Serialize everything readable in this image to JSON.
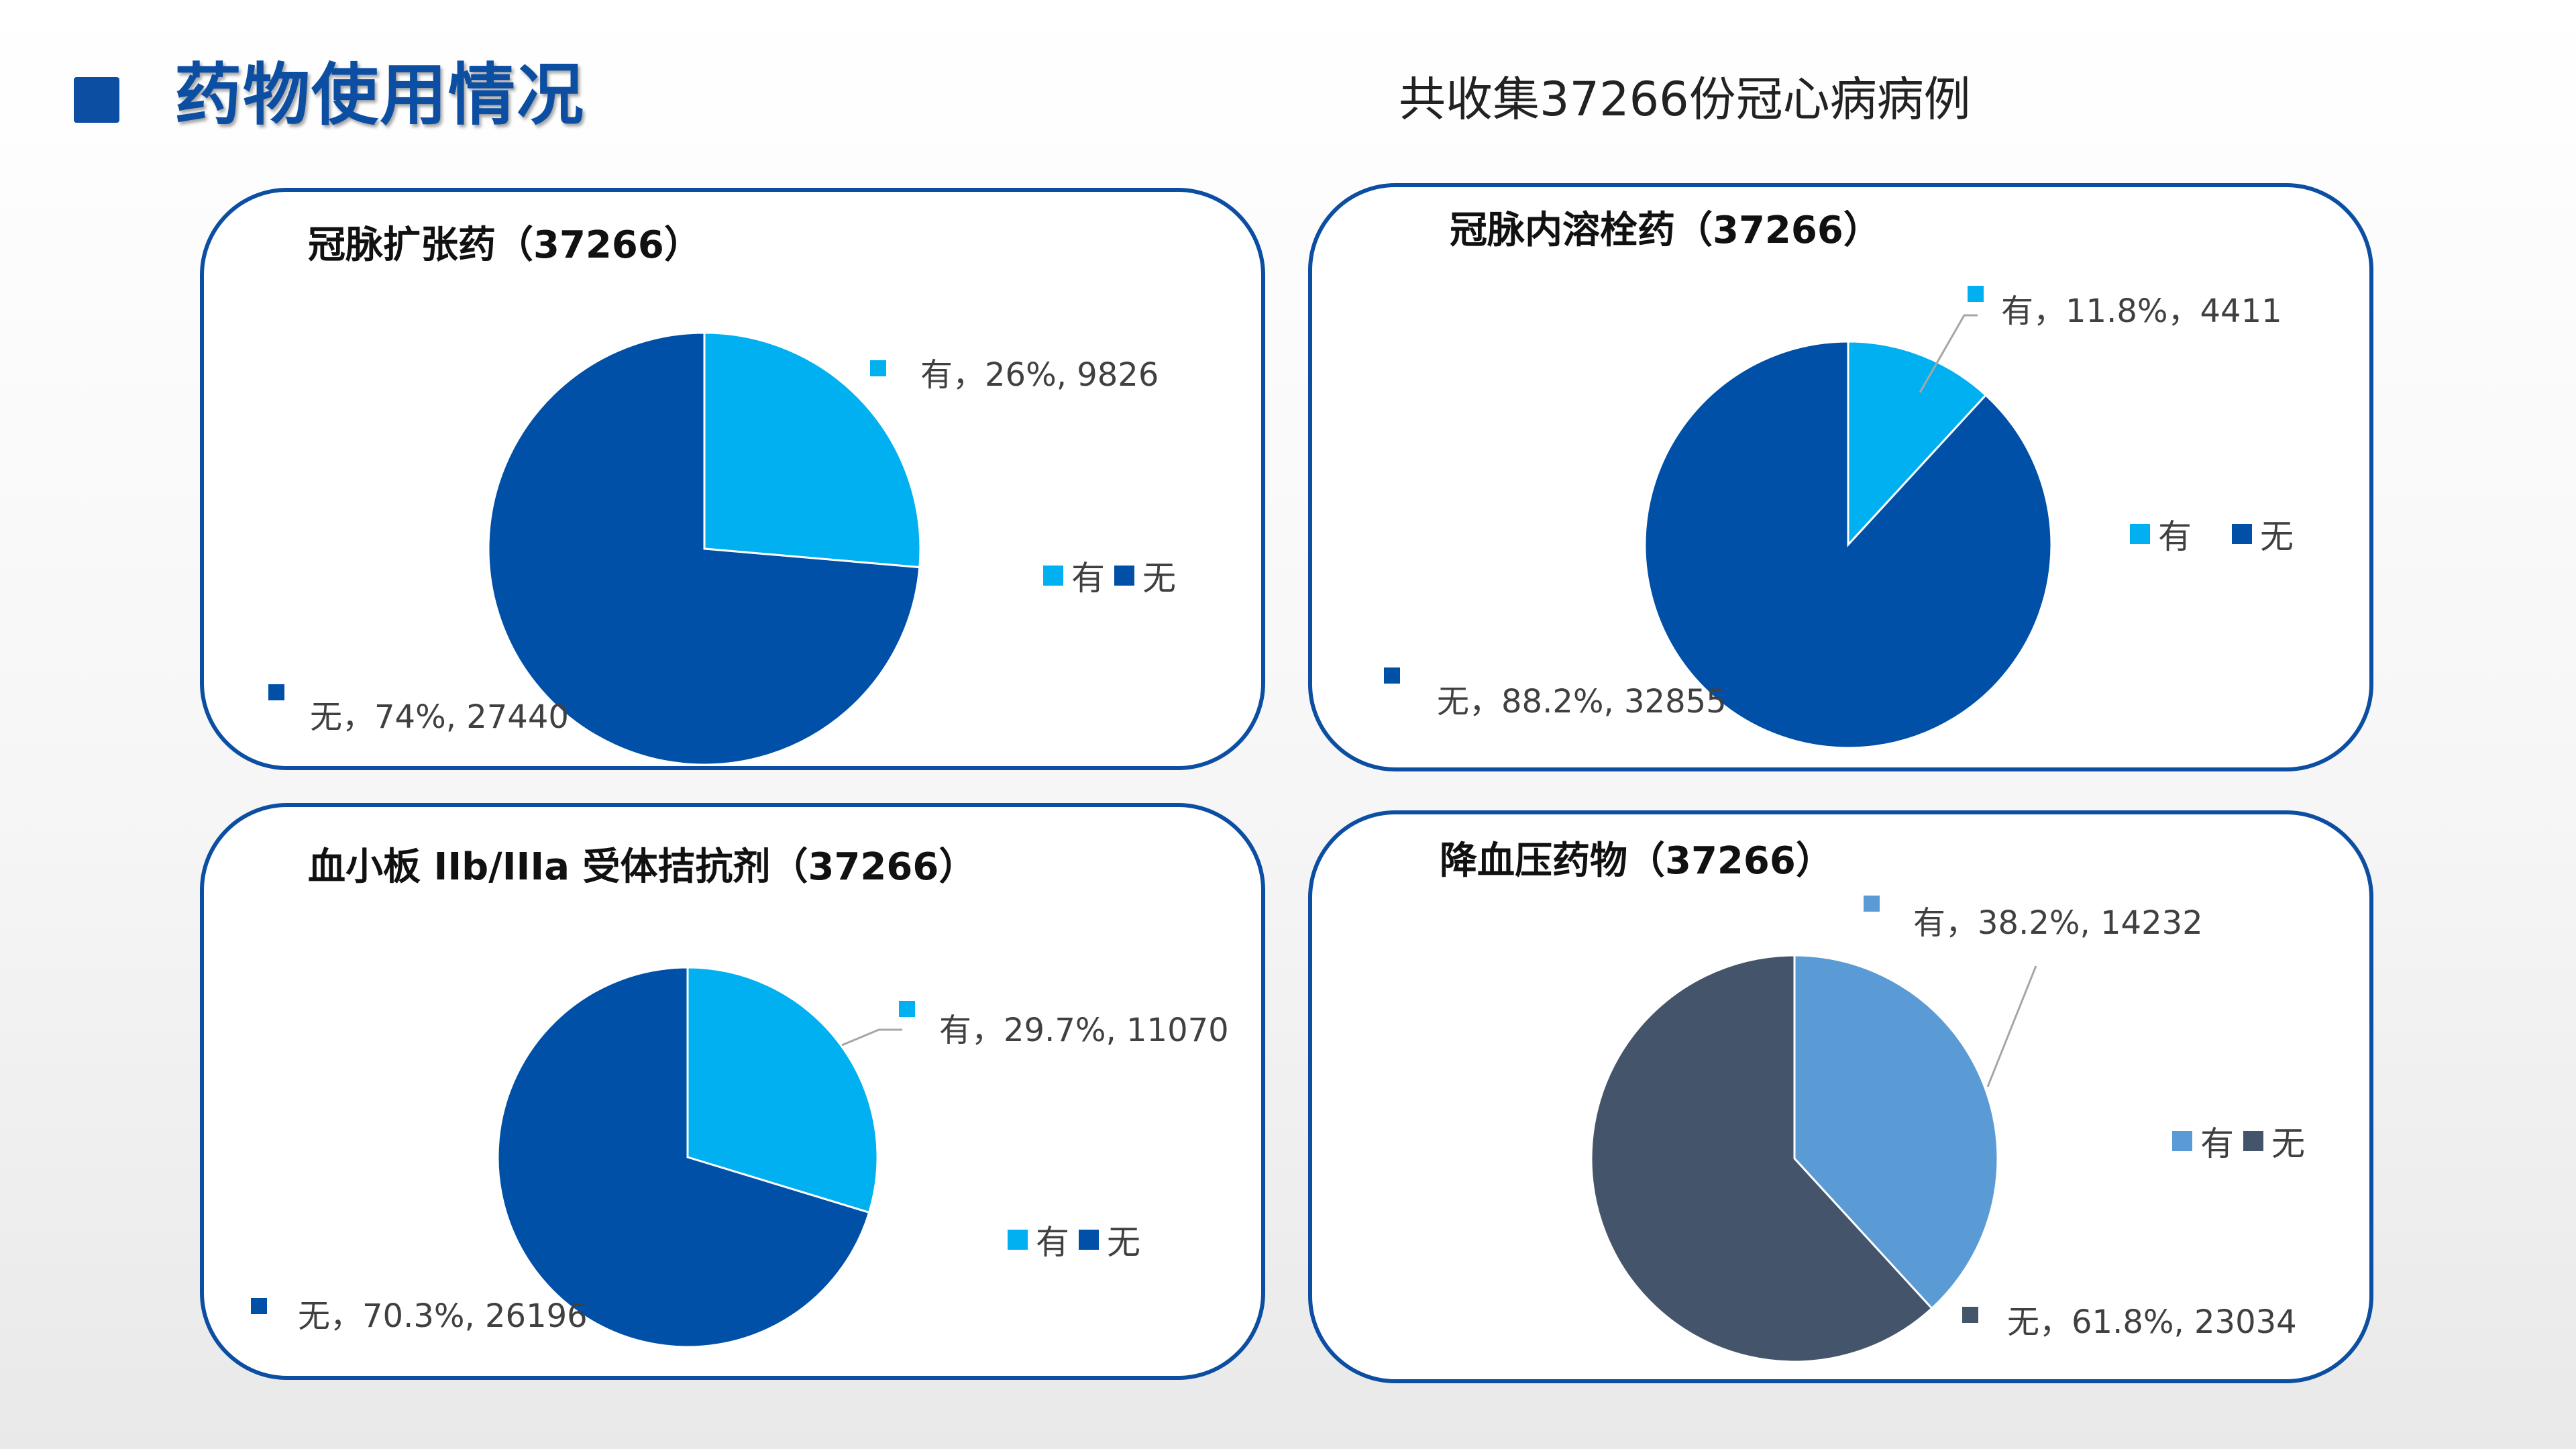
{
  "page_title": "药物使用情况",
  "subtitle": "共收集37266份冠心病病例",
  "chart_data": [
    {
      "type": "pie",
      "title": "冠脉扩张药（37266）",
      "legend": [
        "有",
        "无"
      ],
      "legend_position": "right",
      "slices": [
        {
          "name": "有",
          "label": "有，26%, 9826",
          "value": 9826,
          "percent": 26,
          "color": "#00b0f0"
        },
        {
          "name": "无",
          "label": "无，74%, 27440",
          "value": 27440,
          "percent": 74,
          "color": "#0050a8"
        }
      ]
    },
    {
      "type": "pie",
      "title": "冠脉内溶栓药（37266）",
      "legend": [
        "有",
        "无"
      ],
      "legend_position": "right",
      "slices": [
        {
          "name": "有",
          "label": "有，11.8%，4411",
          "value": 4411,
          "percent": 11.8,
          "color": "#00b0f0"
        },
        {
          "name": "无",
          "label": "无，88.2%, 32855",
          "value": 32855,
          "percent": 88.2,
          "color": "#0050a8"
        }
      ]
    },
    {
      "type": "pie",
      "title": "血小板 IIb/IIIa 受体拮抗剂（37266）",
      "legend": [
        "有",
        "无"
      ],
      "legend_position": "right",
      "slices": [
        {
          "name": "有",
          "label": "有，29.7%, 11070",
          "value": 11070,
          "percent": 29.7,
          "color": "#00b0f0"
        },
        {
          "name": "无",
          "label": "无，70.3%, 26196",
          "value": 26196,
          "percent": 70.3,
          "color": "#0050a8"
        }
      ]
    },
    {
      "type": "pie",
      "title": "降血压药物（37266）",
      "legend": [
        "有",
        "无"
      ],
      "legend_position": "right",
      "slices": [
        {
          "name": "有",
          "label": "有，38.2%, 14232",
          "value": 14232,
          "percent": 38.2,
          "color": "#5b9bd5"
        },
        {
          "name": "无",
          "label": "无，61.8%, 23034",
          "value": 23034,
          "percent": 61.8,
          "color": "#44546a"
        }
      ]
    }
  ]
}
